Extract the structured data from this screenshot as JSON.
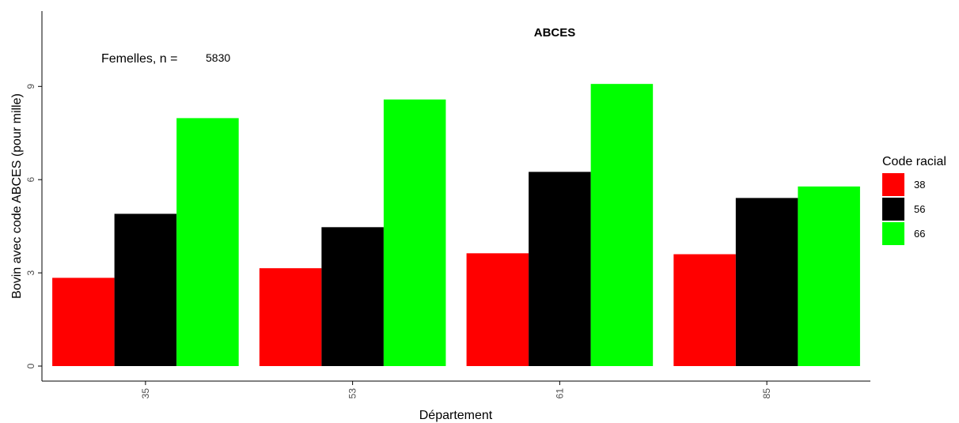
{
  "chart_data": {
    "type": "bar",
    "title": "ABCES",
    "xlabel": "Département",
    "ylabel": "Bovin avec code ABCES (pour mille)",
    "categories": [
      "35",
      "53",
      "61",
      "85"
    ],
    "series": [
      {
        "name": "38",
        "color": "#ff0000",
        "values": [
          2.84,
          3.15,
          3.63,
          3.6
        ]
      },
      {
        "name": "56",
        "color": "#000000",
        "values": [
          4.9,
          4.47,
          6.25,
          5.41
        ]
      },
      {
        "name": "66",
        "color": "#00ff00",
        "values": [
          7.98,
          8.58,
          9.08,
          5.78
        ]
      }
    ],
    "ylim": [
      0,
      11.3
    ],
    "yticks": [
      "0",
      "3",
      "6",
      "9"
    ],
    "grid": false,
    "legend": {
      "title": "Code racial",
      "position": "right"
    },
    "annotation": {
      "text": "Femelles, n =",
      "value": "5830"
    }
  }
}
